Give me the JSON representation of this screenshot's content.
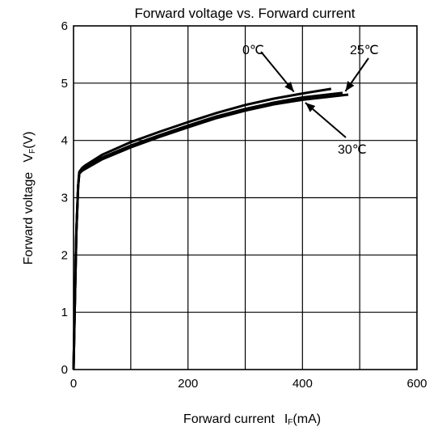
{
  "chart_data": {
    "type": "line",
    "title": "Forward voltage vs. Forward current",
    "xlabel": {
      "main": "Forward current",
      "symbol": "I",
      "sub": "F",
      "unit": "(mA)"
    },
    "ylabel": {
      "main": "Forward voltage",
      "symbol": "V",
      "sub": "F",
      "unit": "(V)"
    },
    "xlim": [
      0,
      600
    ],
    "ylim": [
      0,
      6
    ],
    "xticks": [
      "0",
      "200",
      "400",
      "600"
    ],
    "yticks": [
      "0",
      "1",
      "2",
      "3",
      "4",
      "5",
      "6"
    ],
    "grid": true,
    "series": [
      {
        "name": "0℃",
        "x": [
          0,
          2,
          5,
          8,
          10,
          15,
          20,
          50,
          100,
          150,
          200,
          250,
          300,
          350,
          400,
          450
        ],
        "y": [
          0,
          1.0,
          2.4,
          3.2,
          3.45,
          3.52,
          3.56,
          3.75,
          3.97,
          4.15,
          4.32,
          4.48,
          4.62,
          4.73,
          4.82,
          4.9
        ]
      },
      {
        "name": "25℃",
        "x": [
          0,
          2,
          5,
          8,
          10,
          15,
          20,
          50,
          100,
          150,
          200,
          250,
          300,
          350,
          400,
          470
        ],
        "y": [
          0,
          1.0,
          2.4,
          3.2,
          3.43,
          3.49,
          3.52,
          3.7,
          3.91,
          4.09,
          4.26,
          4.42,
          4.55,
          4.66,
          4.75,
          4.83
        ]
      },
      {
        "name": "30℃",
        "x": [
          0,
          2,
          5,
          8,
          10,
          15,
          20,
          50,
          100,
          150,
          200,
          250,
          300,
          350,
          400,
          480
        ],
        "y": [
          0,
          1.0,
          2.4,
          3.2,
          3.42,
          3.47,
          3.5,
          3.67,
          3.88,
          4.06,
          4.23,
          4.39,
          4.52,
          4.63,
          4.71,
          4.8
        ]
      }
    ],
    "annotations": [
      {
        "label": "0℃",
        "series": 0
      },
      {
        "label": "25℃",
        "series": 1
      },
      {
        "label": "30℃",
        "series": 2
      }
    ]
  }
}
